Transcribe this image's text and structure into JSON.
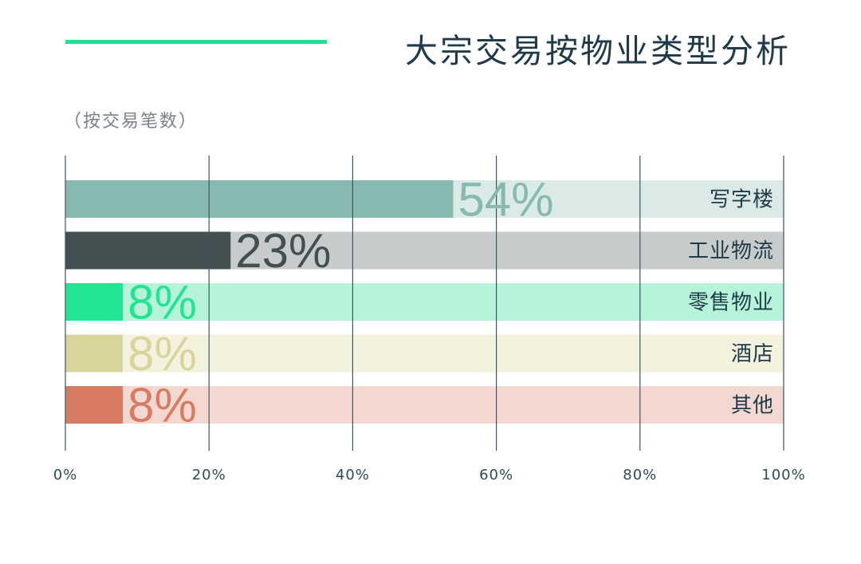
{
  "title": "大宗交易按物业类型分析",
  "subtitle": "（按交易笔数）",
  "accent_color": "#1fe094",
  "chart_data": {
    "type": "bar",
    "orientation": "horizontal",
    "categories": [
      "写字楼",
      "工业物流",
      "零售物业",
      "酒店",
      "其他"
    ],
    "values": [
      54,
      23,
      8,
      8,
      8
    ],
    "value_labels": [
      "54%",
      "23%",
      "8%",
      "8%",
      "8%"
    ],
    "bar_colors": [
      "#86bab0",
      "#434f51",
      "#22e592",
      "#d9d49b",
      "#d77b62"
    ],
    "track_colors": [
      "#dbeae6",
      "#c7cbcb",
      "#b6f3d9",
      "#f3f2df",
      "#f2d8d0"
    ],
    "label_colors": [
      "#86bab0",
      "#434f51",
      "#22e592",
      "#d9d49b",
      "#d77b62"
    ],
    "xlim": [
      0,
      100
    ],
    "x_ticks": [
      "0%",
      "20%",
      "40%",
      "60%",
      "80%",
      "100%"
    ],
    "grid": true
  }
}
